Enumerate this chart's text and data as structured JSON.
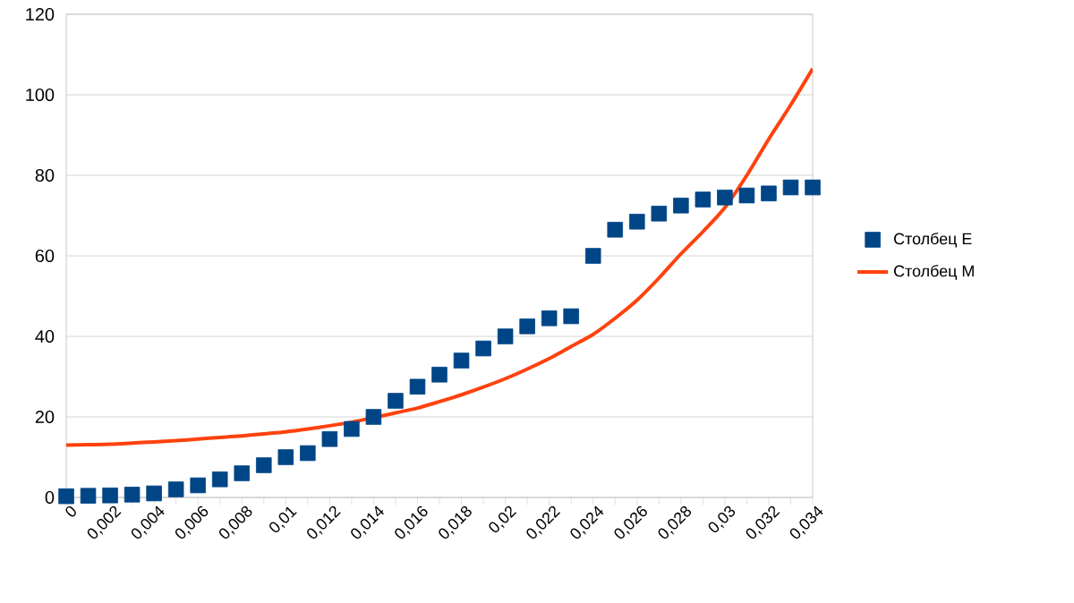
{
  "chart_data": {
    "type": "scatter",
    "x": [
      0,
      0.001,
      0.002,
      0.003,
      0.004,
      0.005,
      0.006,
      0.007,
      0.008,
      0.009,
      0.01,
      0.011,
      0.012,
      0.013,
      0.014,
      0.015,
      0.016,
      0.017,
      0.018,
      0.019,
      0.02,
      0.021,
      0.022,
      0.023,
      0.024,
      0.025,
      0.026,
      0.027,
      0.028,
      0.029,
      0.03,
      0.031,
      0.032,
      0.033,
      0.034
    ],
    "series": [
      {
        "name": "Столбец E",
        "marker": "square",
        "color": "#004586",
        "values": [
          0.3,
          0.4,
          0.5,
          0.7,
          1,
          2,
          3,
          4.5,
          6,
          8,
          10,
          11,
          14.5,
          17,
          20,
          24,
          27.5,
          30.5,
          34,
          37,
          40,
          42.5,
          44.5,
          45,
          60,
          66.5,
          68.5,
          70.5,
          72.5,
          74,
          74.5,
          75,
          75.5,
          77,
          77
        ]
      },
      {
        "name": "Столбец M",
        "type": "line",
        "marker": "none",
        "color": "#ff420e",
        "values": [
          13,
          13.1,
          13.2,
          13.5,
          13.8,
          14.1,
          14.5,
          14.9,
          15.3,
          15.8,
          16.3,
          17,
          17.8,
          18.7,
          19.8,
          21,
          22.2,
          23.8,
          25.5,
          27.4,
          29.5,
          31.9,
          34.5,
          37.5,
          40.5,
          44.5,
          49,
          54.5,
          60.5,
          66,
          72,
          80,
          89,
          97.5,
          106.5
        ]
      }
    ],
    "xlim": [
      0,
      0.034
    ],
    "ylim": [
      0,
      120
    ],
    "xticks": [
      {
        "value": 0,
        "label": "0"
      },
      {
        "value": 0.001,
        "label": null
      },
      {
        "value": 0.002,
        "label": "0,002"
      },
      {
        "value": 0.003,
        "label": null
      },
      {
        "value": 0.004,
        "label": "0,004"
      },
      {
        "value": 0.005,
        "label": null
      },
      {
        "value": 0.006,
        "label": "0,006"
      },
      {
        "value": 0.007,
        "label": null
      },
      {
        "value": 0.008,
        "label": "0,008"
      },
      {
        "value": 0.009,
        "label": null
      },
      {
        "value": 0.01,
        "label": "0,01"
      },
      {
        "value": 0.011,
        "label": null
      },
      {
        "value": 0.012,
        "label": "0,012"
      },
      {
        "value": 0.013,
        "label": null
      },
      {
        "value": 0.014,
        "label": "0,014"
      },
      {
        "value": 0.015,
        "label": null
      },
      {
        "value": 0.016,
        "label": "0,016"
      },
      {
        "value": 0.017,
        "label": null
      },
      {
        "value": 0.018,
        "label": "0,018"
      },
      {
        "value": 0.019,
        "label": null
      },
      {
        "value": 0.02,
        "label": "0,02"
      },
      {
        "value": 0.021,
        "label": null
      },
      {
        "value": 0.022,
        "label": "0,022"
      },
      {
        "value": 0.023,
        "label": null
      },
      {
        "value": 0.024,
        "label": "0,024"
      },
      {
        "value": 0.025,
        "label": null
      },
      {
        "value": 0.026,
        "label": "0,026"
      },
      {
        "value": 0.027,
        "label": null
      },
      {
        "value": 0.028,
        "label": "0,028"
      },
      {
        "value": 0.029,
        "label": null
      },
      {
        "value": 0.03,
        "label": "0,03"
      },
      {
        "value": 0.031,
        "label": null
      },
      {
        "value": 0.032,
        "label": "0,032"
      },
      {
        "value": 0.033,
        "label": null
      },
      {
        "value": 0.034,
        "label": "0,034"
      }
    ],
    "yticks": [
      0,
      20,
      40,
      60,
      80,
      100,
      120
    ],
    "grid": "y",
    "legend": "right"
  }
}
